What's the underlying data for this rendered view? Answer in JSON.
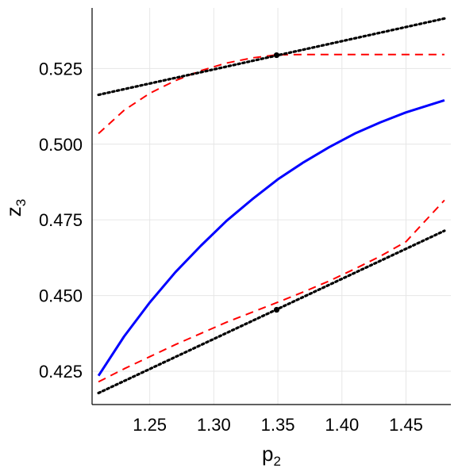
{
  "chart_data": {
    "type": "line",
    "title": "",
    "xlabel": "p",
    "xlabel_sub": "2",
    "ylabel": "z",
    "ylabel_sub": "3",
    "xlim": [
      1.205,
      1.485
    ],
    "ylim": [
      0.414,
      0.545
    ],
    "grid": true,
    "xticks": [
      1.25,
      1.3,
      1.35,
      1.4,
      1.45
    ],
    "xtick_labels": [
      "1.25",
      "1.30",
      "1.35",
      "1.40",
      "1.45"
    ],
    "yticks": [
      0.425,
      0.45,
      0.475,
      0.5,
      0.525
    ],
    "ytick_labels": [
      "0.425",
      "0.450",
      "0.475",
      "0.500",
      "0.525"
    ],
    "series": [
      {
        "style": "solid",
        "color": "#0000ff",
        "x": [
          1.21,
          1.23,
          1.25,
          1.27,
          1.29,
          1.31,
          1.33,
          1.35,
          1.37,
          1.39,
          1.41,
          1.43,
          1.45,
          1.48
        ],
        "y": [
          0.4235,
          0.4365,
          0.4477,
          0.4577,
          0.4665,
          0.4747,
          0.4818,
          0.4884,
          0.494,
          0.499,
          0.5035,
          0.5072,
          0.5105,
          0.5145
        ]
      },
      {
        "style": "dashed",
        "color": "#ff0000",
        "x": [
          1.21,
          1.23,
          1.25,
          1.27,
          1.29,
          1.31,
          1.33,
          1.349,
          1.37,
          1.4,
          1.43,
          1.45,
          1.48
        ],
        "y": [
          0.5035,
          0.5112,
          0.5168,
          0.521,
          0.5243,
          0.5268,
          0.5285,
          0.5295,
          0.5296,
          0.5296,
          0.5296,
          0.5296,
          0.5296
        ]
      },
      {
        "style": "dashed",
        "color": "#ff0000",
        "x": [
          1.21,
          1.23,
          1.25,
          1.27,
          1.29,
          1.31,
          1.33,
          1.35,
          1.37,
          1.39,
          1.41,
          1.43,
          1.45,
          1.48
        ],
        "y": [
          0.4215,
          0.4258,
          0.4298,
          0.4338,
          0.4375,
          0.4412,
          0.4445,
          0.4478,
          0.4512,
          0.4548,
          0.4588,
          0.463,
          0.4678,
          0.4815
        ]
      },
      {
        "style": "dotted",
        "color": "#000000",
        "x": [
          1.21,
          1.48
        ],
        "y": [
          0.5163,
          0.5415
        ]
      },
      {
        "style": "dotted",
        "color": "#000000",
        "x": [
          1.21,
          1.48
        ],
        "y": [
          0.4178,
          0.4714
        ]
      }
    ],
    "points": [
      {
        "x": 1.349,
        "y": 0.5294,
        "color": "#000000"
      },
      {
        "x": 1.349,
        "y": 0.4453,
        "color": "#000000"
      }
    ]
  }
}
